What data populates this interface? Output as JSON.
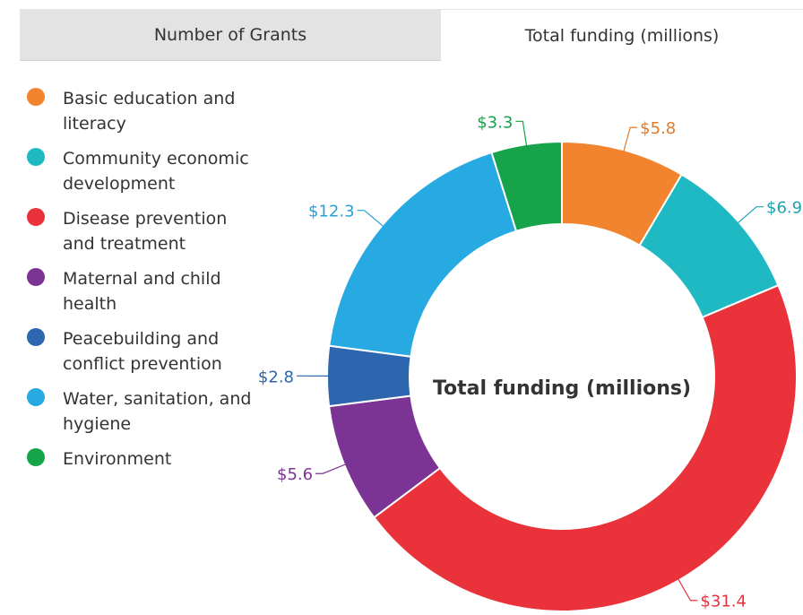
{
  "tabs": [
    {
      "label": "Number of Grants",
      "active": false
    },
    {
      "label": "Total funding (millions)",
      "active": true
    }
  ],
  "legend": [
    {
      "label": "Basic education and literacy",
      "color": "#f28430"
    },
    {
      "label": "Community economic development",
      "color": "#1fb9c4"
    },
    {
      "label": "Disease prevention and treatment",
      "color": "#e9323a"
    },
    {
      "label": "Maternal and child health",
      "color": "#7b3494"
    },
    {
      "label": "Peacebuilding and conflict prevention",
      "color": "#2d65ae"
    },
    {
      "label": "Water, sanitation, and hygiene",
      "color": "#27a9e1"
    },
    {
      "label": "Environment",
      "color": "#16a34a"
    }
  ],
  "chart_data": {
    "type": "pie",
    "variant": "donut",
    "title": "Total funding (millions)",
    "categories": [
      "Basic education and literacy",
      "Community economic development",
      "Disease prevention and treatment",
      "Maternal and child health",
      "Peacebuilding and conflict prevention",
      "Water, sanitation, and hygiene",
      "Environment"
    ],
    "values": [
      5.8,
      6.9,
      31.4,
      5.6,
      2.8,
      12.3,
      3.3
    ],
    "data_labels": [
      "$5.8",
      "$6.9",
      "$31.4",
      "$5.6",
      "$2.8",
      "$12.3",
      "$3.3"
    ],
    "colors": [
      "#f28430",
      "#1fb9c4",
      "#e9323a",
      "#7b3494",
      "#2d65ae",
      "#27a9e1",
      "#16a34a"
    ],
    "label_colors": [
      "#e07a2a",
      "#1aa4ae",
      "#e9323a",
      "#7b3494",
      "#2d65ae",
      "#2a9fd6",
      "#16a34a"
    ]
  }
}
